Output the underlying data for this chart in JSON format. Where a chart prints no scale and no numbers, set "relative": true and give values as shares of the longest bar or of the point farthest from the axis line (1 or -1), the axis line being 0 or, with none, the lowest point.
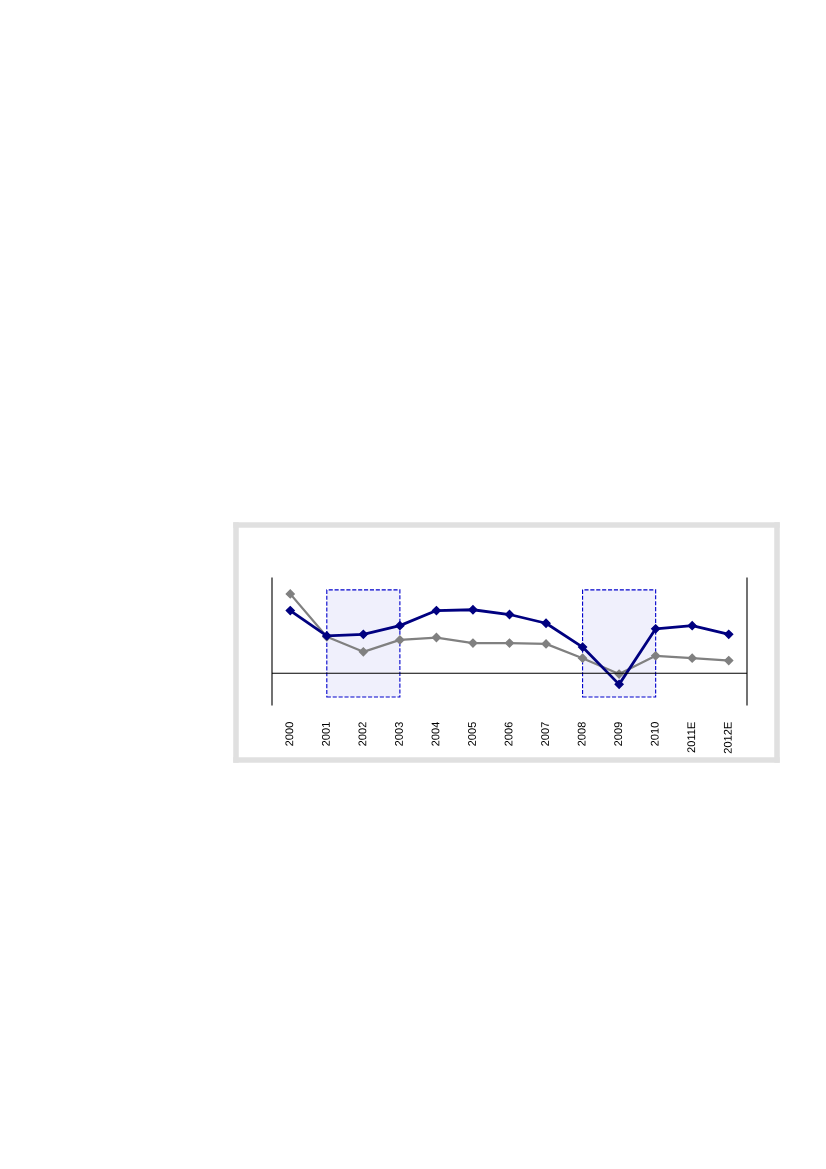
{
  "chart_data": {
    "type": "line",
    "relative": true,
    "categories": [
      "2000",
      "2001",
      "2002",
      "2003",
      "2004",
      "2005",
      "2006",
      "2007",
      "2008",
      "2009",
      "2010",
      "2011E",
      "2012E"
    ],
    "series": [
      {
        "color": "#808080",
        "values": [
          1.0,
          0.46,
          0.27,
          0.42,
          0.45,
          0.38,
          0.38,
          0.37,
          0.19,
          -0.01,
          0.22,
          0.19,
          0.16
        ]
      },
      {
        "color": "#000080",
        "values": [
          0.79,
          0.47,
          0.49,
          0.6,
          0.79,
          0.8,
          0.74,
          0.63,
          0.33,
          -0.14,
          0.56,
          0.6,
          0.49
        ]
      }
    ],
    "marker": "diamond",
    "line_style": "solid",
    "grid": false,
    "bands": [
      {
        "axis": "x",
        "from": "2001",
        "to": "2003",
        "color": "#0000cc"
      },
      {
        "axis": "x",
        "from": "2008",
        "to": "2010",
        "color": "#0000cc"
      }
    ]
  }
}
